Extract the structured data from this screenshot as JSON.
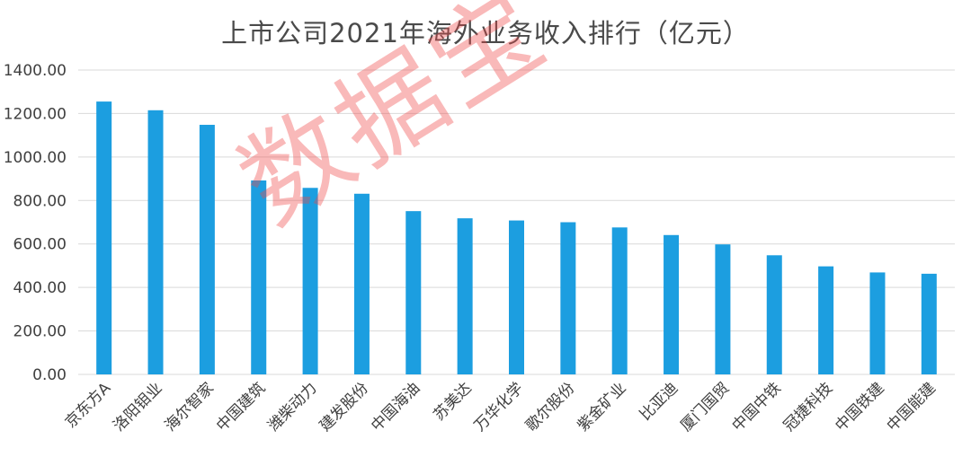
{
  "chart_data": {
    "type": "bar",
    "title": "上市公司2021年海外业务收入排行（亿元）",
    "categories": [
      "京东方A",
      "洛阳钼业",
      "海尔智家",
      "中国建筑",
      "潍柴动力",
      "建发股份",
      "中国海油",
      "苏美达",
      "万华化学",
      "歌尔股份",
      "紫金矿业",
      "比亚迪",
      "厦门国贸",
      "中国中铁",
      "冠捷科技",
      "中国铁建",
      "中国能建"
    ],
    "values": [
      1255,
      1215,
      1148,
      892,
      858,
      831,
      751,
      718,
      708,
      700,
      676,
      641,
      598,
      548,
      497,
      469,
      463
    ],
    "yticks": [
      "0.00",
      "200.00",
      "400.00",
      "600.00",
      "800.00",
      "1000.00",
      "1200.00",
      "1400.00"
    ],
    "ylim": [
      0,
      1400
    ],
    "grid": true,
    "bar_color": "#1c9ee0"
  },
  "watermark": "数据宝"
}
